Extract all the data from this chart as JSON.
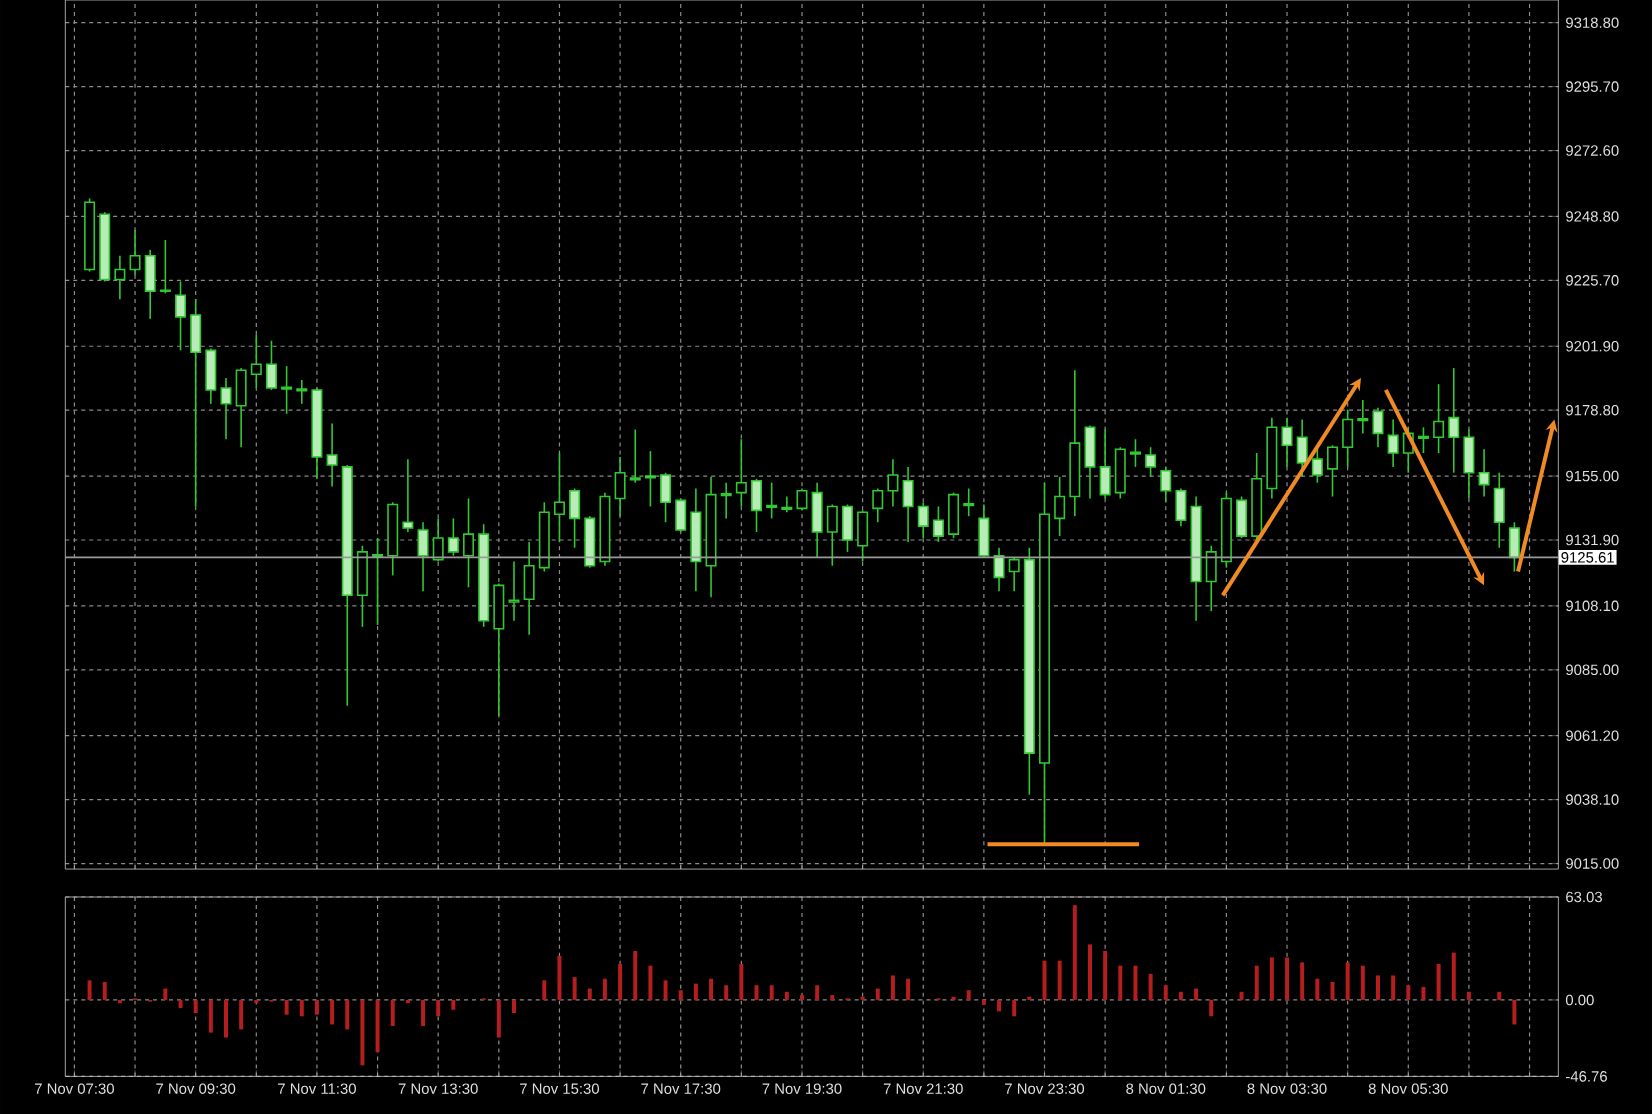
{
  "chart_data": [
    {
      "type": "candlestick",
      "color": "#32c832",
      "grid": true,
      "tick_labels": "y",
      "ylim": [
        9013,
        9327
      ],
      "categories": [
        null,
        null,
        null,
        null,
        null,
        null,
        null,
        null,
        null,
        null,
        null,
        null,
        null,
        null,
        null,
        null,
        null,
        null,
        null,
        null,
        null,
        null,
        null,
        null,
        null,
        null,
        null,
        null,
        null,
        null,
        null,
        null,
        null,
        null,
        null,
        null,
        null,
        null,
        null,
        null,
        null,
        null,
        null,
        null,
        null,
        null,
        null,
        null,
        null,
        null,
        null,
        null,
        null,
        null,
        null,
        null,
        null,
        null,
        null,
        null,
        null,
        null,
        null,
        null,
        null,
        null,
        null,
        null,
        null,
        null,
        null,
        null,
        null,
        null,
        null,
        null,
        null,
        null,
        null,
        null,
        null,
        null,
        null,
        null,
        null,
        null,
        null,
        null,
        null,
        null,
        null,
        null,
        null,
        null,
        null,
        null
      ],
      "yticks": [
        {
          "value": 9015,
          "label": "9015.00"
        },
        {
          "value": 9038.1,
          "label": "9038.10"
        },
        {
          "value": 9061.2,
          "label": "9061.20"
        },
        {
          "value": 9085,
          "label": "9085.00"
        },
        {
          "value": 9108.1,
          "label": "9108.10"
        },
        {
          "value": 9131.9,
          "label": "9131.90"
        },
        {
          "value": 9155,
          "label": "9155.00"
        },
        {
          "value": 9178.8,
          "label": "9178.80"
        },
        {
          "value": 9201.9,
          "label": "9201.90"
        },
        {
          "value": 9225.7,
          "label": "9225.70"
        },
        {
          "value": 9248.8,
          "label": "9248.80"
        },
        {
          "value": 9272.6,
          "label": "9272.60"
        },
        {
          "value": 9295.7,
          "label": "9295.70"
        },
        {
          "value": 9318.8,
          "label": "9318.80"
        }
      ],
      "ref_lines": [
        {
          "axis": "y",
          "value": 9125.61,
          "label": "9125.61",
          "color": "#9a9a9a"
        },
        {
          "axis": "y",
          "value": 9022,
          "color": "#f08a24"
        }
      ],
      "ohlc": [
        null,
        [
          9229.6,
          9255.3,
          9228.9,
          9253.9
        ],
        [
          9249.6,
          9250.3,
          9225.3,
          9226.0
        ],
        [
          9226.0,
          9234.6,
          9218.9,
          9229.6
        ],
        [
          9229.6,
          9243.9,
          9227.5,
          9234.6
        ],
        [
          9234.6,
          9236.7,
          9211.8,
          9221.8
        ],
        [
          9222.1,
          9240.3,
          9221.0,
          9221.8
        ],
        [
          9220.3,
          9225.3,
          9200.4,
          9212.5
        ],
        [
          9213.2,
          9218.9,
          9144.0,
          9199.7
        ],
        [
          9200.4,
          9201.1,
          9181.1,
          9186.1
        ],
        [
          9186.8,
          9190.4,
          9168.3,
          9181.1
        ],
        [
          9180.4,
          9194.0,
          9165.4,
          9193.2
        ],
        [
          9191.8,
          9206.1,
          9186.8,
          9195.4
        ],
        [
          9195.4,
          9203.9,
          9186.1,
          9186.8
        ],
        [
          9187.1,
          9194.7,
          9177.5,
          9186.5
        ],
        [
          9186.4,
          9189.7,
          9181.1,
          9185.8
        ],
        [
          9186.1,
          9186.8,
          9154.0,
          9161.9
        ],
        [
          9162.6,
          9174.0,
          9151.2,
          9159.0
        ],
        [
          9158.3,
          9159.0,
          9072.0,
          9111.9
        ],
        [
          9111.9,
          9129.8,
          9100.5,
          9127.6
        ],
        [
          9125.9,
          9132.6,
          9101.2,
          9126.5
        ],
        [
          9126.2,
          9145.5,
          9119.1,
          9144.7
        ],
        [
          9138.3,
          9161.1,
          9134.8,
          9136.2
        ],
        [
          9135.5,
          9138.3,
          9113.4,
          9126.2
        ],
        [
          9124.8,
          9139.7,
          9124.1,
          9132.6
        ],
        [
          9132.6,
          9139.7,
          9126.2,
          9127.6
        ],
        [
          9126.2,
          9146.9,
          9114.8,
          9134.0
        ],
        [
          9134.0,
          9137.6,
          9100.5,
          9102.7
        ],
        [
          9099.8,
          9116.2,
          9068.4,
          9115.5
        ],
        [
          9109.5,
          9124.1,
          9102.7,
          9110.1
        ],
        [
          9110.5,
          9131.2,
          9097.7,
          9122.6
        ],
        [
          9121.9,
          9145.5,
          9120.5,
          9141.9
        ],
        [
          9141.2,
          9163.3,
          9131.2,
          9145.5
        ],
        [
          9149.7,
          9150.5,
          9129.1,
          9139.7
        ],
        [
          9139.7,
          9140.5,
          9121.9,
          9122.6
        ],
        [
          9124.1,
          9149.0,
          9122.6,
          9147.6
        ],
        [
          9146.9,
          9161.9,
          9140.5,
          9156.2
        ],
        [
          9153.7,
          9171.8,
          9152.6,
          9154.3
        ],
        [
          9155.0,
          9164.0,
          9144.0,
          9154.4
        ],
        [
          9155.4,
          9156.2,
          9138.3,
          9145.5
        ],
        [
          9146.2,
          9146.9,
          9134.8,
          9135.5
        ],
        [
          9141.9,
          9150.5,
          9113.4,
          9124.1
        ],
        [
          9122.6,
          9154.7,
          9111.2,
          9148.3
        ],
        [
          9148.0,
          9152.6,
          9139.7,
          9148.6
        ],
        [
          9149.0,
          9168.3,
          9144.0,
          9152.6
        ],
        [
          9153.3,
          9154.0,
          9134.8,
          9142.6
        ],
        [
          9144.3,
          9152.6,
          9139.7,
          9143.7
        ],
        [
          9143.0,
          9147.6,
          9141.9,
          9143.6
        ],
        [
          9143.3,
          9150.5,
          9142.6,
          9149.7
        ],
        [
          9149.0,
          9152.6,
          9125.5,
          9134.8
        ],
        [
          9134.8,
          9144.7,
          9122.6,
          9144.0
        ],
        [
          9144.0,
          9144.7,
          9127.6,
          9131.9
        ],
        [
          9129.8,
          9142.6,
          9124.1,
          9141.9
        ],
        [
          9143.3,
          9150.5,
          9138.3,
          9149.7
        ],
        [
          9149.7,
          9161.1,
          9144.0,
          9155.4
        ],
        [
          9153.3,
          9158.3,
          9131.2,
          9144.0
        ],
        [
          9144.0,
          9145.5,
          9132.6,
          9136.9
        ],
        [
          9139.0,
          9144.0,
          9131.2,
          9133.3
        ],
        [
          9134.0,
          9149.0,
          9132.6,
          9148.3
        ],
        [
          9144.4,
          9150.5,
          9140.5,
          9145.0
        ],
        [
          9139.7,
          9144.7,
          9125.5,
          9126.2
        ],
        [
          9126.2,
          9129.1,
          9113.4,
          9118.4
        ],
        [
          9120.5,
          9125.5,
          9113.4,
          9124.8
        ],
        [
          9124.8,
          9129.1,
          9039.9,
          9054.9
        ],
        [
          9051.3,
          9152.6,
          9022.1,
          9141.2
        ],
        [
          9139.7,
          9154.7,
          9133.3,
          9147.6
        ],
        [
          9147.6,
          9193.2,
          9140.5,
          9166.9
        ],
        [
          9172.6,
          9173.3,
          9146.9,
          9158.3
        ],
        [
          9158.3,
          9171.8,
          9146.9,
          9148.3
        ],
        [
          9149.0,
          9165.4,
          9146.9,
          9164.7
        ],
        [
          9163.0,
          9168.3,
          9158.3,
          9163.6
        ],
        [
          9162.6,
          9165.4,
          9154.7,
          9158.3
        ],
        [
          9156.9,
          9158.3,
          9145.5,
          9149.7
        ],
        [
          9149.7,
          9150.5,
          9136.9,
          9139.0
        ],
        [
          9144.0,
          9147.6,
          9102.7,
          9116.9
        ],
        [
          9116.9,
          9129.8,
          9106.2,
          9127.6
        ],
        [
          9124.1,
          9149.0,
          9121.9,
          9146.9
        ],
        [
          9146.2,
          9147.6,
          9132.6,
          9133.3
        ],
        [
          9133.3,
          9163.3,
          9131.9,
          9154.0
        ],
        [
          9150.5,
          9176.1,
          9146.9,
          9172.6
        ],
        [
          9172.6,
          9176.1,
          9158.3,
          9166.1
        ],
        [
          9169.0,
          9175.4,
          9154.7,
          9159.7
        ],
        [
          9161.1,
          9165.4,
          9152.6,
          9155.4
        ],
        [
          9157.6,
          9166.1,
          9147.6,
          9165.4
        ],
        [
          9165.4,
          9179.0,
          9158.3,
          9175.4
        ],
        [
          9175.1,
          9182.5,
          9170.4,
          9175.7
        ],
        [
          9178.3,
          9179.7,
          9165.4,
          9170.4
        ],
        [
          9169.7,
          9175.4,
          9158.3,
          9163.3
        ],
        [
          9163.3,
          9172.6,
          9156.2,
          9170.4
        ],
        [
          9168.7,
          9172.6,
          9163.3,
          9169.3
        ],
        [
          9169.0,
          9188.2,
          9163.3,
          9174.7
        ],
        [
          9176.1,
          9194.0,
          9156.2,
          9169.0
        ],
        [
          9169.0,
          9171.8,
          9146.9,
          9156.2
        ],
        [
          9156.2,
          9164.7,
          9147.6,
          9151.9
        ],
        [
          9150.5,
          9156.2,
          9129.1,
          9138.3
        ],
        [
          9136.2,
          9138.3,
          9120.5,
          9125.6
        ]
      ]
    },
    {
      "type": "bar",
      "color": "#b41e1e",
      "grid": true,
      "ylim": [
        -46.76,
        63.03
      ],
      "yticks": [
        -46.76,
        {
          "value": 0,
          "label": "0.00"
        },
        63.03
      ],
      "categories": [
        "7 Nov 07:30",
        null,
        null,
        null,
        null,
        null,
        null,
        null,
        "7 Nov 09:30",
        null,
        null,
        null,
        null,
        null,
        null,
        null,
        "7 Nov 11:30",
        null,
        null,
        null,
        null,
        null,
        null,
        null,
        "7 Nov 13:30",
        null,
        null,
        null,
        null,
        null,
        null,
        null,
        "7 Nov 15:30",
        null,
        null,
        null,
        null,
        null,
        null,
        null,
        "7 Nov 17:30",
        null,
        null,
        null,
        null,
        null,
        null,
        null,
        "7 Nov 19:30",
        null,
        null,
        null,
        null,
        null,
        null,
        null,
        "7 Nov 21:30",
        null,
        null,
        null,
        null,
        null,
        null,
        null,
        "7 Nov 23:30",
        null,
        null,
        null,
        null,
        null,
        null,
        null,
        "8 Nov 01:30",
        null,
        null,
        null,
        null,
        null,
        null,
        null,
        "8 Nov 03:30",
        null,
        null,
        null,
        null,
        null,
        null,
        null,
        "8 Nov 05:30",
        null,
        null,
        null,
        null,
        null,
        null,
        null
      ],
      "values": [
        null,
        12,
        11,
        -2,
        1,
        -1,
        7,
        -5,
        -8,
        -20,
        -23,
        -18,
        -2,
        -1,
        -9,
        -10,
        -9,
        -15,
        -18,
        -40,
        -32,
        -16,
        -2,
        -16,
        -10,
        -6,
        0,
        1,
        -23,
        -8,
        0,
        12,
        27,
        14,
        7,
        13,
        22,
        30,
        21,
        12,
        6,
        10,
        13,
        9,
        22,
        9,
        9,
        5,
        3,
        9,
        3,
        1,
        2,
        7,
        15,
        13,
        0,
        1,
        2,
        6,
        -3,
        -7,
        -10,
        2,
        24,
        24,
        58,
        34,
        30,
        21,
        21,
        16,
        9,
        5,
        7,
        -10,
        0,
        5,
        21,
        26,
        26,
        23,
        13,
        11,
        23,
        21,
        15,
        15,
        9,
        8,
        22,
        29,
        5,
        0,
        5,
        -15
      ]
    }
  ]
}
